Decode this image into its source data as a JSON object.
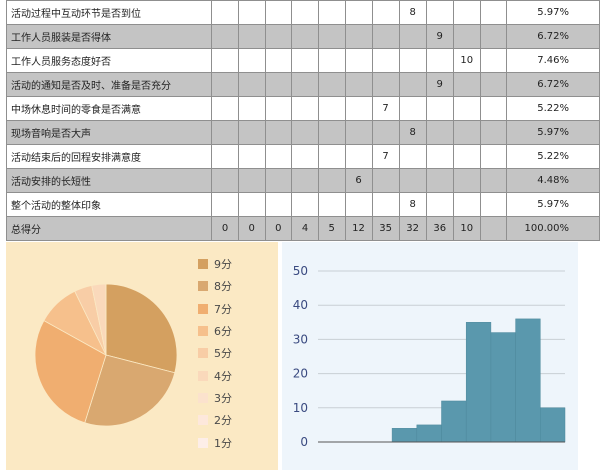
{
  "table": {
    "rows": [
      {
        "label": "活动过程中互动环节是否到位",
        "cells": [
          "",
          "",
          "",
          "",
          "",
          "",
          "",
          "8",
          "",
          "",
          ""
        ],
        "pct": "5.97%",
        "gray": false
      },
      {
        "label": "工作人员服装是否得体",
        "cells": [
          "",
          "",
          "",
          "",
          "",
          "",
          "",
          "",
          "9",
          "",
          ""
        ],
        "pct": "6.72%",
        "gray": true
      },
      {
        "label": "工作人员服务态度好否",
        "cells": [
          "",
          "",
          "",
          "",
          "",
          "",
          "",
          "",
          "",
          "10",
          ""
        ],
        "pct": "7.46%",
        "gray": false
      },
      {
        "label": "活动的通知是否及时、准备是否充分",
        "cells": [
          "",
          "",
          "",
          "",
          "",
          "",
          "",
          "",
          "9",
          "",
          ""
        ],
        "pct": "6.72%",
        "gray": true
      },
      {
        "label": "中场休息时间的零食是否满意",
        "cells": [
          "",
          "",
          "",
          "",
          "",
          "",
          "7",
          "",
          "",
          "",
          ""
        ],
        "pct": "5.22%",
        "gray": false
      },
      {
        "label": "现场音响是否大声",
        "cells": [
          "",
          "",
          "",
          "",
          "",
          "",
          "",
          "8",
          "",
          "",
          ""
        ],
        "pct": "5.97%",
        "gray": true
      },
      {
        "label": "活动结束后的回程安排满意度",
        "cells": [
          "",
          "",
          "",
          "",
          "",
          "",
          "7",
          "",
          "",
          "",
          ""
        ],
        "pct": "5.22%",
        "gray": false
      },
      {
        "label": "活动安排的长短性",
        "cells": [
          "",
          "",
          "",
          "",
          "",
          "6",
          "",
          "",
          "",
          "",
          ""
        ],
        "pct": "4.48%",
        "gray": true
      },
      {
        "label": "整个活动的整体印象",
        "cells": [
          "",
          "",
          "",
          "",
          "",
          "",
          "",
          "8",
          "",
          "",
          ""
        ],
        "pct": "5.97%",
        "gray": false
      },
      {
        "label": "总得分",
        "cells": [
          "0",
          "0",
          "0",
          "4",
          "5",
          "12",
          "35",
          "32",
          "36",
          "10",
          ""
        ],
        "pct": "100.00%",
        "gray": true
      }
    ]
  },
  "chart_data": [
    {
      "type": "pie",
      "categories": [
        "9分",
        "8分",
        "7分",
        "6分",
        "5分",
        "4分",
        "3分",
        "2分",
        "1分"
      ],
      "values": [
        36,
        32,
        35,
        12,
        5,
        4,
        0,
        0,
        0
      ],
      "colors": [
        "#d4a060",
        "#d9a870",
        "#f0ae70",
        "#f6c08c",
        "#f8cda6",
        "#fad9bb",
        "#fbe2cd",
        "#fde8dc",
        "#fdeee8"
      ],
      "legend_position": "right"
    },
    {
      "type": "bar",
      "values": [
        0,
        0,
        0,
        4,
        5,
        12,
        35,
        32,
        36,
        10
      ],
      "ylim": [
        0,
        50
      ],
      "yticks": [
        "0",
        "10",
        "20",
        "30",
        "40",
        "50"
      ],
      "grid": true,
      "color": "#5a98ad"
    }
  ]
}
